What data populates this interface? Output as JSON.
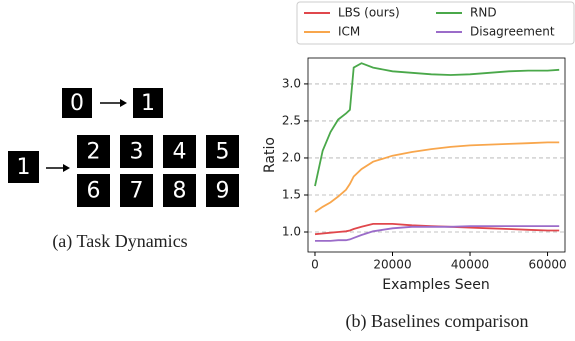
{
  "task_dynamics": {
    "caption": "(a) Task Dynamics",
    "top_source": "0",
    "top_target": "1",
    "bottom_source": "1",
    "bottom_targets": [
      "2",
      "3",
      "4",
      "5",
      "6",
      "7",
      "8",
      "9"
    ]
  },
  "chart_data": {
    "type": "line",
    "caption": "(b) Baselines comparison",
    "xlabel": "Examples Seen",
    "ylabel": "Ratio",
    "x": [
      0,
      2000,
      4000,
      6000,
      8000,
      9000,
      10000,
      12000,
      15000,
      20000,
      25000,
      30000,
      35000,
      40000,
      45000,
      50000,
      55000,
      60000,
      63000
    ],
    "series": [
      {
        "name": "LBS (ours)",
        "color": "#e0474c",
        "values": [
          0.97,
          0.98,
          0.99,
          1.0,
          1.01,
          1.02,
          1.04,
          1.07,
          1.11,
          1.11,
          1.09,
          1.08,
          1.07,
          1.06,
          1.05,
          1.04,
          1.03,
          1.02,
          1.02
        ]
      },
      {
        "name": "ICM",
        "color": "#f8a64c",
        "values": [
          1.27,
          1.34,
          1.4,
          1.48,
          1.57,
          1.65,
          1.75,
          1.85,
          1.95,
          2.03,
          2.08,
          2.12,
          2.15,
          2.17,
          2.18,
          2.19,
          2.2,
          2.21,
          2.21
        ]
      },
      {
        "name": "RND",
        "color": "#4aa84a",
        "values": [
          1.62,
          2.1,
          2.35,
          2.52,
          2.6,
          2.65,
          3.22,
          3.28,
          3.22,
          3.17,
          3.15,
          3.13,
          3.12,
          3.13,
          3.15,
          3.17,
          3.18,
          3.18,
          3.19
        ]
      },
      {
        "name": "Disagreement",
        "color": "#9b6cc9",
        "values": [
          0.88,
          0.88,
          0.88,
          0.89,
          0.89,
          0.9,
          0.92,
          0.96,
          1.01,
          1.05,
          1.07,
          1.07,
          1.07,
          1.08,
          1.08,
          1.08,
          1.08,
          1.08,
          1.08
        ]
      }
    ],
    "xlim": [
      -1800,
      64500
    ],
    "xticks": [
      0,
      20000,
      40000,
      60000
    ],
    "ylim": [
      0.73,
      3.35
    ],
    "yticks": [
      {
        "value": 1,
        "label": "1.0"
      },
      1.5,
      {
        "value": 2,
        "label": "2.0"
      },
      2.5,
      {
        "value": 3,
        "label": "3.0"
      }
    ],
    "grid": true
  }
}
